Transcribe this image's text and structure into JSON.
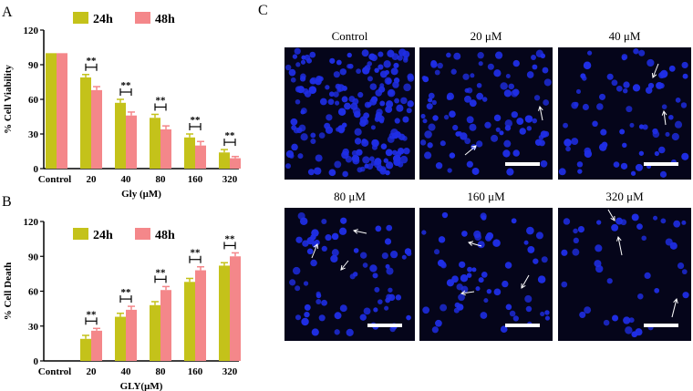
{
  "panel_labels": {
    "a": "A",
    "b": "B",
    "c": "C"
  },
  "colors": {
    "h24": "#c4c21a",
    "h48": "#f4878a",
    "micro_bg": "#05051a",
    "nucleus": "#1f2ee6",
    "scale_bar": "#ffffff"
  },
  "chart_data": [
    {
      "type": "bar",
      "panel": "A",
      "categories": [
        "Control",
        "20",
        "40",
        "80",
        "160",
        "320"
      ],
      "series": [
        {
          "name": "24h",
          "values": [
            100,
            79,
            57,
            44,
            27,
            14
          ],
          "errors": [
            0,
            2.5,
            3,
            3,
            3,
            2.5
          ]
        },
        {
          "name": "48h",
          "values": [
            100,
            68,
            46,
            34,
            20,
            9
          ],
          "errors": [
            0,
            3,
            3,
            3,
            3.5,
            1.5
          ]
        }
      ],
      "significance": [
        "",
        "**",
        "**",
        "**",
        "**",
        "**"
      ],
      "xlabel": "Gly (μM)",
      "ylabel": "% Cell Viability",
      "ylim": [
        0,
        120
      ],
      "yticks": [
        0,
        30,
        60,
        90,
        120
      ],
      "legend": "top-center"
    },
    {
      "type": "bar",
      "panel": "B",
      "categories": [
        "Control",
        "20",
        "40",
        "80",
        "160",
        "320"
      ],
      "series": [
        {
          "name": "24h",
          "values": [
            0,
            19,
            38,
            48,
            68,
            82
          ],
          "errors": [
            0,
            3,
            3,
            3,
            3,
            2.5
          ]
        },
        {
          "name": "48h",
          "values": [
            0,
            26,
            44,
            61,
            78,
            90
          ],
          "errors": [
            0,
            2,
            3,
            3,
            3,
            3
          ]
        }
      ],
      "significance": [
        "",
        "**",
        "**",
        "**",
        "**",
        "**"
      ],
      "xlabel": "GLY(μM)",
      "ylabel": "% Cell Death",
      "ylim": [
        0,
        120
      ],
      "yticks": [
        0,
        30,
        60,
        90,
        120
      ],
      "legend": "top-center"
    }
  ],
  "micrographs": [
    {
      "title": "Control",
      "arrows": 0,
      "scale_bar": false
    },
    {
      "title": "20 μM",
      "arrows": 2,
      "scale_bar": true
    },
    {
      "title": "40 μM",
      "arrows": 2,
      "scale_bar": true
    },
    {
      "title": "80 μM",
      "arrows": 3,
      "scale_bar": true
    },
    {
      "title": "160 μM",
      "arrows": 3,
      "scale_bar": true
    },
    {
      "title": "320 μM",
      "arrows": 3,
      "scale_bar": true
    }
  ]
}
